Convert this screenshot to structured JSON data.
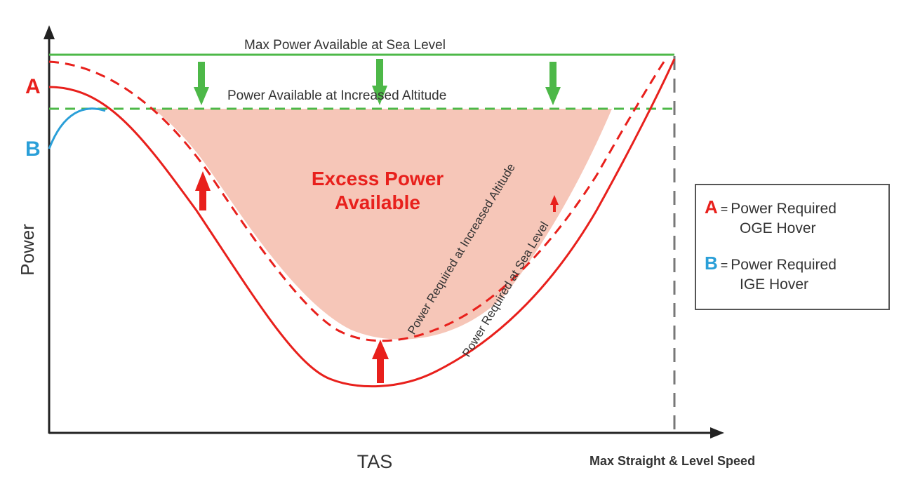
{
  "labels": {
    "max_power_sea_level": "Max Power Available at Sea Level",
    "power_available_increased_altitude": "Power Available at Increased Altitude",
    "excess_power_line1": "Excess Power",
    "excess_power_line2": "Available",
    "power_required_increased_altitude": "Power Required at Increased Altitude",
    "power_required_sea_level": "Power Required at Sea Level",
    "y_axis": "Power",
    "x_axis": "TAS",
    "max_speed": "Max Straight & Level Speed",
    "marker_a": "A",
    "marker_b": "B"
  },
  "legend": {
    "a_letter": "A",
    "a_equals": "=",
    "a_line1": "Power Required",
    "a_line2": "OGE Hover",
    "b_letter": "B",
    "b_equals": "=",
    "b_line1": "Power Required",
    "b_line2": "IGE Hover"
  },
  "colors": {
    "red": "#e8201c",
    "green": "#4db848",
    "blue": "#2a9fd8",
    "fill": "#f6c6b8",
    "axis": "#222222",
    "dashed_gray": "#777777"
  }
}
